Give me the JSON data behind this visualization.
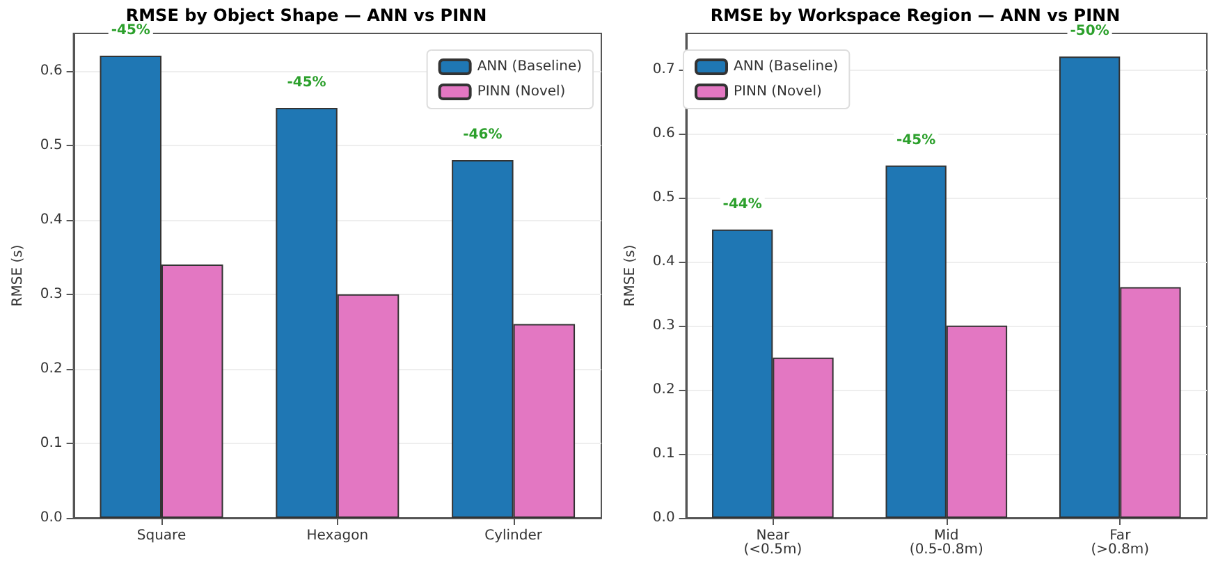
{
  "chart_data": [
    {
      "type": "bar",
      "title": "RMSE by Object Shape — ANN vs PINN",
      "ylabel": "RMSE (s)",
      "categories": [
        "Square",
        "Hexagon",
        "Cylinder"
      ],
      "series": [
        {
          "name": "ANN (Baseline)",
          "color": "#1f77b4",
          "values": [
            0.62,
            0.55,
            0.48
          ]
        },
        {
          "name": "PINN (Novel)",
          "color": "#e377c2",
          "values": [
            0.34,
            0.3,
            0.26
          ]
        }
      ],
      "ylim": [
        0,
        0.65
      ],
      "yticks": [
        {
          "value": 0,
          "label": "0.0"
        },
        0.1,
        0.2,
        0.3,
        0.4,
        0.5,
        0.6
      ],
      "grid": "y",
      "legend": "top right",
      "annotations": [
        "-45%",
        "-45%",
        "-46%"
      ]
    },
    {
      "type": "bar",
      "title": "RMSE by Workspace Region — ANN vs PINN",
      "ylabel": "RMSE (s)",
      "categories": [
        "Near\n(<0.5m)",
        "Mid\n(0.5-0.8m)",
        "Far\n(>0.8m)"
      ],
      "series": [
        {
          "name": "ANN (Baseline)",
          "color": "#1f77b4",
          "values": [
            0.45,
            0.55,
            0.72
          ]
        },
        {
          "name": "PINN (Novel)",
          "color": "#e377c2",
          "values": [
            0.25,
            0.3,
            0.36
          ]
        }
      ],
      "ylim": [
        0,
        0.756
      ],
      "yticks": [
        {
          "value": 0,
          "label": "0.0"
        },
        0.1,
        0.2,
        0.3,
        0.4,
        0.5,
        0.6,
        0.7
      ],
      "grid": "y",
      "legend": "top left",
      "annotations": [
        "-44%",
        "-45%",
        "-50%"
      ]
    }
  ]
}
